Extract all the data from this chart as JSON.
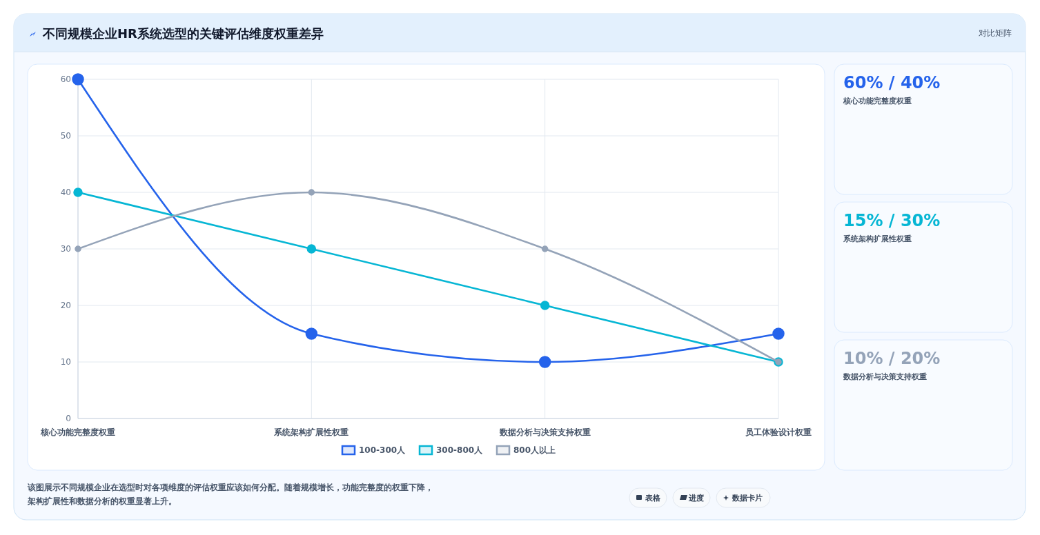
{
  "chart_data": [
    {
      "type": "line",
      "title": "不同规模企业HR系统选型的关键评估维度权重差异",
      "categories": [
        "核心功能完整度权重",
        "系统架构扩展性权重",
        "数据分析与决策支持权重",
        "员工体验设计权重"
      ],
      "series": [
        {
          "name": "100-300人",
          "color": "#2563eb",
          "values": [
            60,
            15,
            10,
            15
          ]
        },
        {
          "name": "300-800人",
          "color": "#06b6d4",
          "values": [
            40,
            30,
            20,
            10
          ]
        },
        {
          "name": "800人以上",
          "color": "#94a3b8",
          "values": [
            30,
            40,
            30,
            10
          ]
        }
      ],
      "ylim": [
        0,
        60
      ],
      "yticks": [
        0,
        10,
        20,
        30,
        40,
        50,
        60
      ],
      "grid": true,
      "legend": "bottom",
      "marker": "circle",
      "line_style": "solid",
      "annotations": [
        "对比矩阵",
        "该图展示不同规模企业在选型时对各项维度的评估权重应该如何分配。随着规模增长，功能完整度的权重下降，架构扩展性和数据分析的权重显著上升。",
        "表格",
        "进度",
        "数据卡片"
      ]
    },
    {
      "type": "other",
      "title": "60% / 40%",
      "subtitle": "核心功能完整度权重"
    },
    {
      "type": "other",
      "title": "15% / 30%",
      "subtitle": "系统架构扩展性权重"
    },
    {
      "type": "other",
      "title": "10% / 20%",
      "subtitle": "数据分析与决策支持权重"
    }
  ]
}
